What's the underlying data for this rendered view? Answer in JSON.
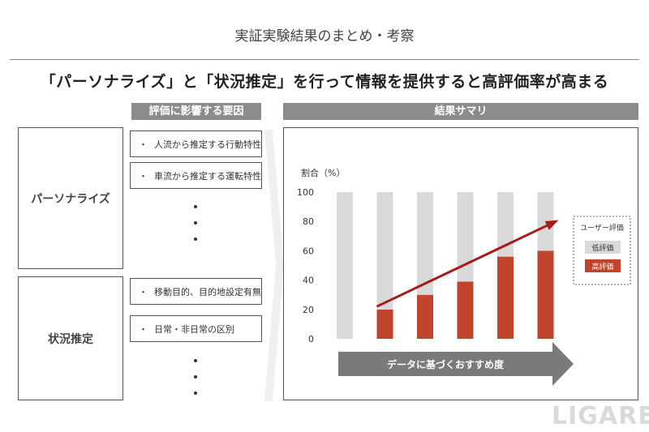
{
  "page": {
    "title": "実証実験結果のまとめ・考察",
    "headline": "「パーソナライズ」と「状況推定」を行って情報を提供すると高評価率が高まる",
    "factors_header": "評価に影響する要因",
    "results_header": "結果サマリ",
    "groups": [
      {
        "label": "パーソナライズ",
        "items": [
          "人流から推定する行動特性",
          "車流から推定する運転特性"
        ]
      },
      {
        "label": "状況推定",
        "items": [
          "移動目的、目的地設定有無",
          "日常・非日常の区別"
        ]
      }
    ],
    "bullet": "・",
    "arrow_label": "データに基づくおすすめ度",
    "watermark": "LIGARE",
    "colors": {
      "header_gray": "#8c8c8c",
      "low": "#d9d9d9",
      "high": "#c0432b",
      "trend": "#a61c1c",
      "arrow": "#7a7a7a"
    }
  },
  "chart_data": {
    "type": "bar",
    "stacked": true,
    "ylabel": "割合（%）",
    "ylim": [
      0,
      100
    ],
    "yticks": [
      0,
      20,
      40,
      60,
      80,
      100
    ],
    "categories": [
      "",
      "",
      "",
      "",
      "",
      ""
    ],
    "legend_title": "ユーザー評価",
    "legend_position": "right",
    "series": [
      {
        "name": "低評価",
        "color": "#d9d9d9",
        "values": [
          100,
          80,
          70,
          61,
          44,
          40
        ]
      },
      {
        "name": "高評価",
        "color": "#c0432b",
        "values": [
          0,
          20,
          30,
          39,
          56,
          60
        ]
      }
    ],
    "trend_arrow": true,
    "grid": false
  }
}
